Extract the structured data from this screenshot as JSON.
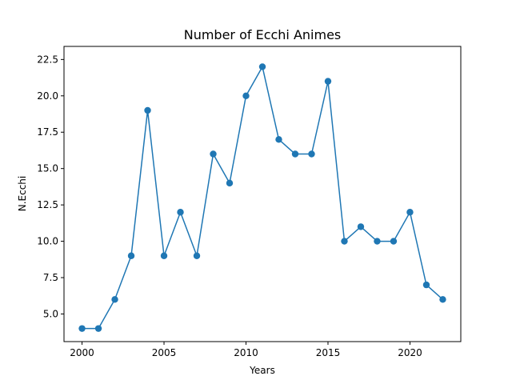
{
  "chart_data": {
    "type": "line",
    "title": "Number of Ecchi Animes",
    "xlabel": "Years",
    "ylabel": "N.Ecchi",
    "xlim": [
      1998.9,
      2023.1
    ],
    "ylim": [
      3.1,
      23.4
    ],
    "xticks": [
      2000,
      2005,
      2010,
      2015,
      2020
    ],
    "xtick_labels": [
      "2000",
      "2005",
      "2010",
      "2015",
      "2020"
    ],
    "yticks": [
      5.0,
      7.5,
      10.0,
      12.5,
      15.0,
      17.5,
      20.0,
      22.5
    ],
    "ytick_labels": [
      "5.0",
      "7.5",
      "10.0",
      "12.5",
      "15.0",
      "17.5",
      "20.0",
      "22.5"
    ],
    "grid": false,
    "series": [
      {
        "color": "#1f77b4",
        "marker": "circle",
        "x": [
          2000,
          2001,
          2002,
          2003,
          2004,
          2005,
          2006,
          2007,
          2008,
          2009,
          2010,
          2011,
          2012,
          2013,
          2014,
          2015,
          2016,
          2017,
          2018,
          2019,
          2020,
          2021,
          2022
        ],
        "y": [
          4,
          4,
          6,
          9,
          19,
          9,
          12,
          9,
          16,
          14,
          20,
          22,
          17,
          16,
          16,
          21,
          10,
          11,
          10,
          10,
          12,
          7,
          6
        ]
      }
    ]
  }
}
